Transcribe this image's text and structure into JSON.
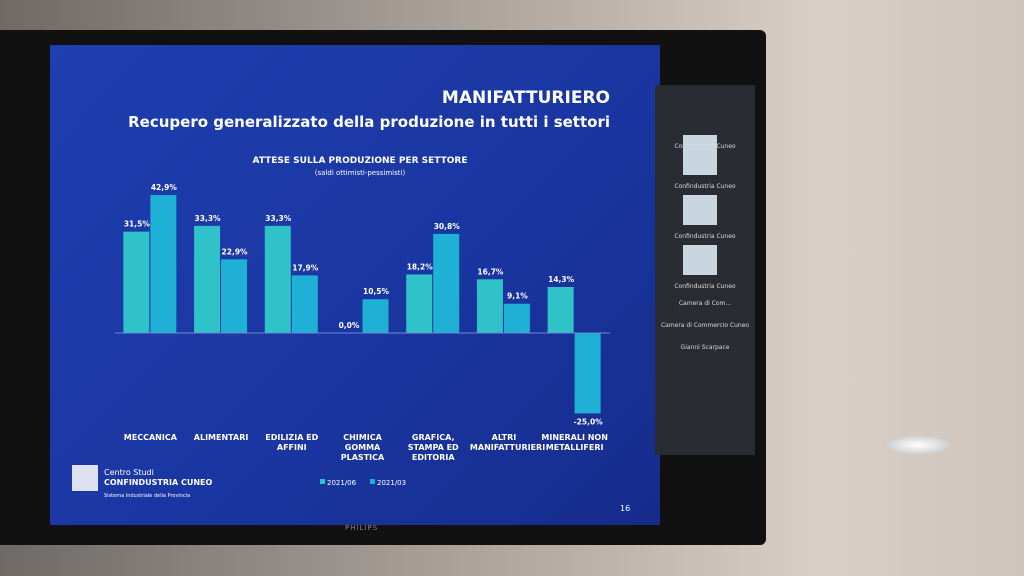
{
  "chart_data": {
    "type": "bar",
    "section": "MANIFATTURIERO",
    "title": "Recupero generalizzato della produzione in tutti i settori",
    "chart_title": "ATTESE SULLA PRODUZIONE PER SETTORE",
    "subtitle": "(saldi ottimisti-pessimisti)",
    "categories": [
      "MECCANICA",
      "ALIMENTARI",
      "EDILIZIA ED AFFINI",
      "CHIMICA GOMMA PLASTICA",
      "GRAFICA, STAMPA ED EDITORIA",
      "ALTRI MANIFATTURIERI",
      "MINERALI NON METALLIFERI"
    ],
    "series": [
      {
        "name": "2021/06",
        "color": "#2fc3c9",
        "values": [
          31.5,
          33.3,
          33.3,
          0.0,
          18.2,
          16.7,
          14.3
        ],
        "value_labels": [
          "31,5%",
          "33,3%",
          "33,3%",
          "0,0%",
          "18,2%",
          "16,7%",
          "14,3%"
        ]
      },
      {
        "name": "2021/03",
        "color": "#1fb0d6",
        "values": [
          42.9,
          22.9,
          17.9,
          10.5,
          30.8,
          9.1,
          -25.0
        ],
        "value_labels": [
          "42,9%",
          "22,9%",
          "17,9%",
          "10,5%",
          "30,8%",
          "9,1%",
          "-25,0%"
        ]
      }
    ],
    "legend": "bottom"
  },
  "slide": {
    "logo_line1": "Centro Studi",
    "logo_line2": "CONFINDUSTRIA CUNEO",
    "logo_line3": "Sistema Industriale della Provincia",
    "page_number": "16"
  },
  "tv": {
    "brand": "PHILIPS"
  },
  "sidebar": {
    "participants": [
      "Confindustria Cuneo",
      "Confindustria Cuneo",
      "Confindustria Cuneo",
      "Confindustria Cuneo",
      "Camera di Com...",
      "Camera di Commercio Cuneo",
      "Gianni Scarpace"
    ]
  }
}
